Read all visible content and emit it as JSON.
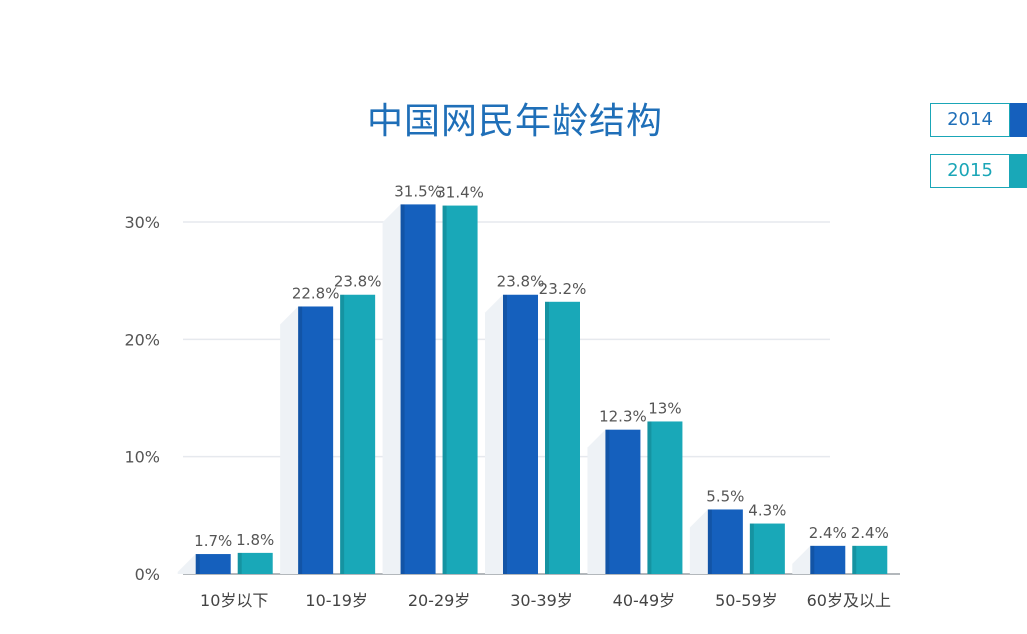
{
  "chart_data": {
    "type": "bar",
    "title": "中国网民年龄结构",
    "xlabel": "",
    "ylabel": "",
    "categories": [
      "10岁以下",
      "10-19岁",
      "20-29岁",
      "30-39岁",
      "40-49岁",
      "50-59岁",
      "60岁及以上"
    ],
    "series": [
      {
        "name": "2014",
        "color": "#1560bd",
        "values": [
          1.7,
          22.8,
          31.5,
          23.8,
          12.3,
          5.5,
          2.4
        ],
        "labels": [
          "1.7%",
          "22.8%",
          "31.5%",
          "23.8%",
          "12.3%",
          "5.5%",
          "2.4%"
        ]
      },
      {
        "name": "2015",
        "color": "#19a8b8",
        "values": [
          1.8,
          23.8,
          31.4,
          23.2,
          13.0,
          4.3,
          2.4
        ],
        "labels": [
          "1.8%",
          "23.8%",
          "31.4%",
          "23.2%",
          "13%",
          "4.3%",
          "2.4%"
        ]
      }
    ],
    "yticks": [
      "0%",
      "10%",
      "20%",
      "30%"
    ],
    "ytick_values": [
      0,
      10,
      20,
      30
    ],
    "ylim": [
      0,
      30
    ],
    "grid": true,
    "legend_position": "top-right"
  }
}
